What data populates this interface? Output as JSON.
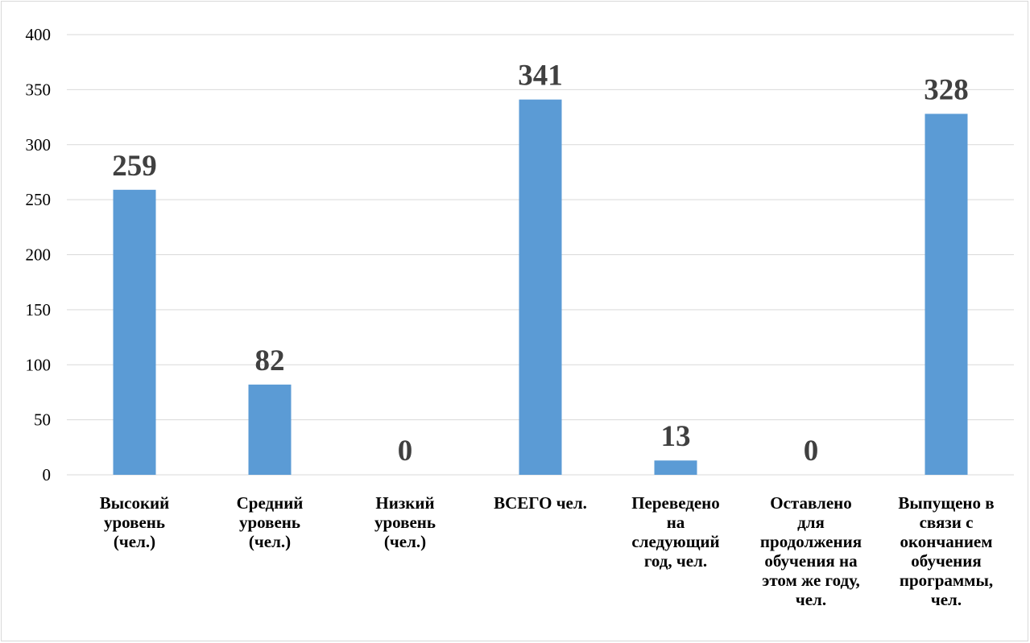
{
  "chart_data": {
    "type": "bar",
    "categories": [
      [
        "Высокий",
        "уровень",
        "(чел.)"
      ],
      [
        "Средний",
        "уровень",
        "(чел.)"
      ],
      [
        "Низкий",
        "уровень",
        "(чел.)"
      ],
      [
        "ВСЕГО чел."
      ],
      [
        "Переведено",
        "на",
        "следующий",
        "год, чел."
      ],
      [
        "Оставлено",
        "для",
        "продолжения",
        "обучения на",
        "этом же году,",
        "чел."
      ],
      [
        "Выпущено в",
        "связи с",
        "окончанием",
        "обучения",
        "программы,",
        "чел."
      ]
    ],
    "values": [
      259,
      82,
      0,
      341,
      13,
      0,
      328
    ],
    "data_labels": [
      "259",
      "82",
      "0",
      "341",
      "13",
      "0",
      "328"
    ],
    "y_ticks": [
      "0",
      "50",
      "100",
      "150",
      "200",
      "250",
      "300",
      "350",
      "400"
    ],
    "ylim": [
      0,
      400
    ],
    "grid": true,
    "legend": "none",
    "colors": {
      "bar": "#5b9bd5",
      "grid": "#d9d9d9",
      "data_label": "#404040"
    }
  }
}
